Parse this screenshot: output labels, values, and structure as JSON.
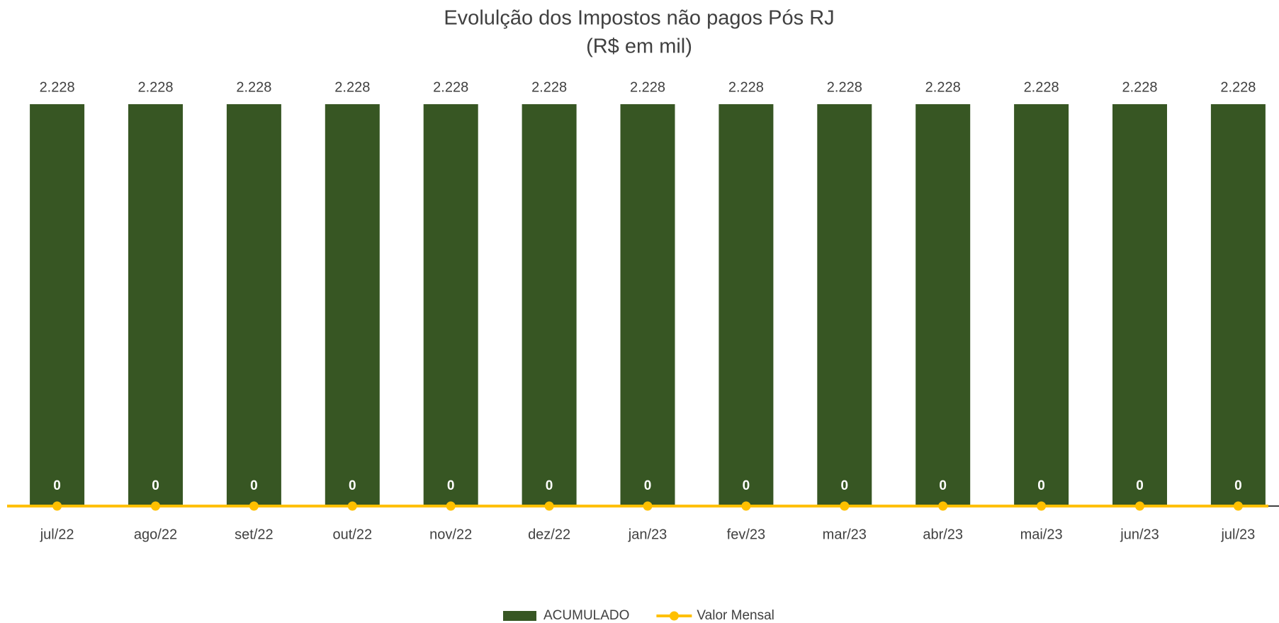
{
  "chart_data": {
    "type": "bar_line",
    "title": "Evolulção dos Impostos não pagos Pós RJ",
    "subtitle": "(R$ em mil)",
    "categories": [
      "jul/22",
      "ago/22",
      "set/22",
      "out/22",
      "nov/22",
      "dez/22",
      "jan/23",
      "fev/23",
      "mar/23",
      "abr/23",
      "mai/23",
      "jun/23",
      "jul/23"
    ],
    "series": [
      {
        "name": "ACUMULADO",
        "type": "bar",
        "color": "#375623",
        "values": [
          2228,
          2228,
          2228,
          2228,
          2228,
          2228,
          2228,
          2228,
          2228,
          2228,
          2228,
          2228,
          2228
        ],
        "value_labels": [
          "2.228",
          "2.228",
          "2.228",
          "2.228",
          "2.228",
          "2.228",
          "2.228",
          "2.228",
          "2.228",
          "2.228",
          "2.228",
          "2.228",
          "2.228"
        ]
      },
      {
        "name": "Valor Mensal",
        "type": "line",
        "color": "#FFC000",
        "values": [
          0,
          0,
          0,
          0,
          0,
          0,
          0,
          0,
          0,
          0,
          0,
          0,
          0
        ]
      }
    ],
    "ylim": [
      0,
      2228
    ],
    "legend": "bottom"
  }
}
